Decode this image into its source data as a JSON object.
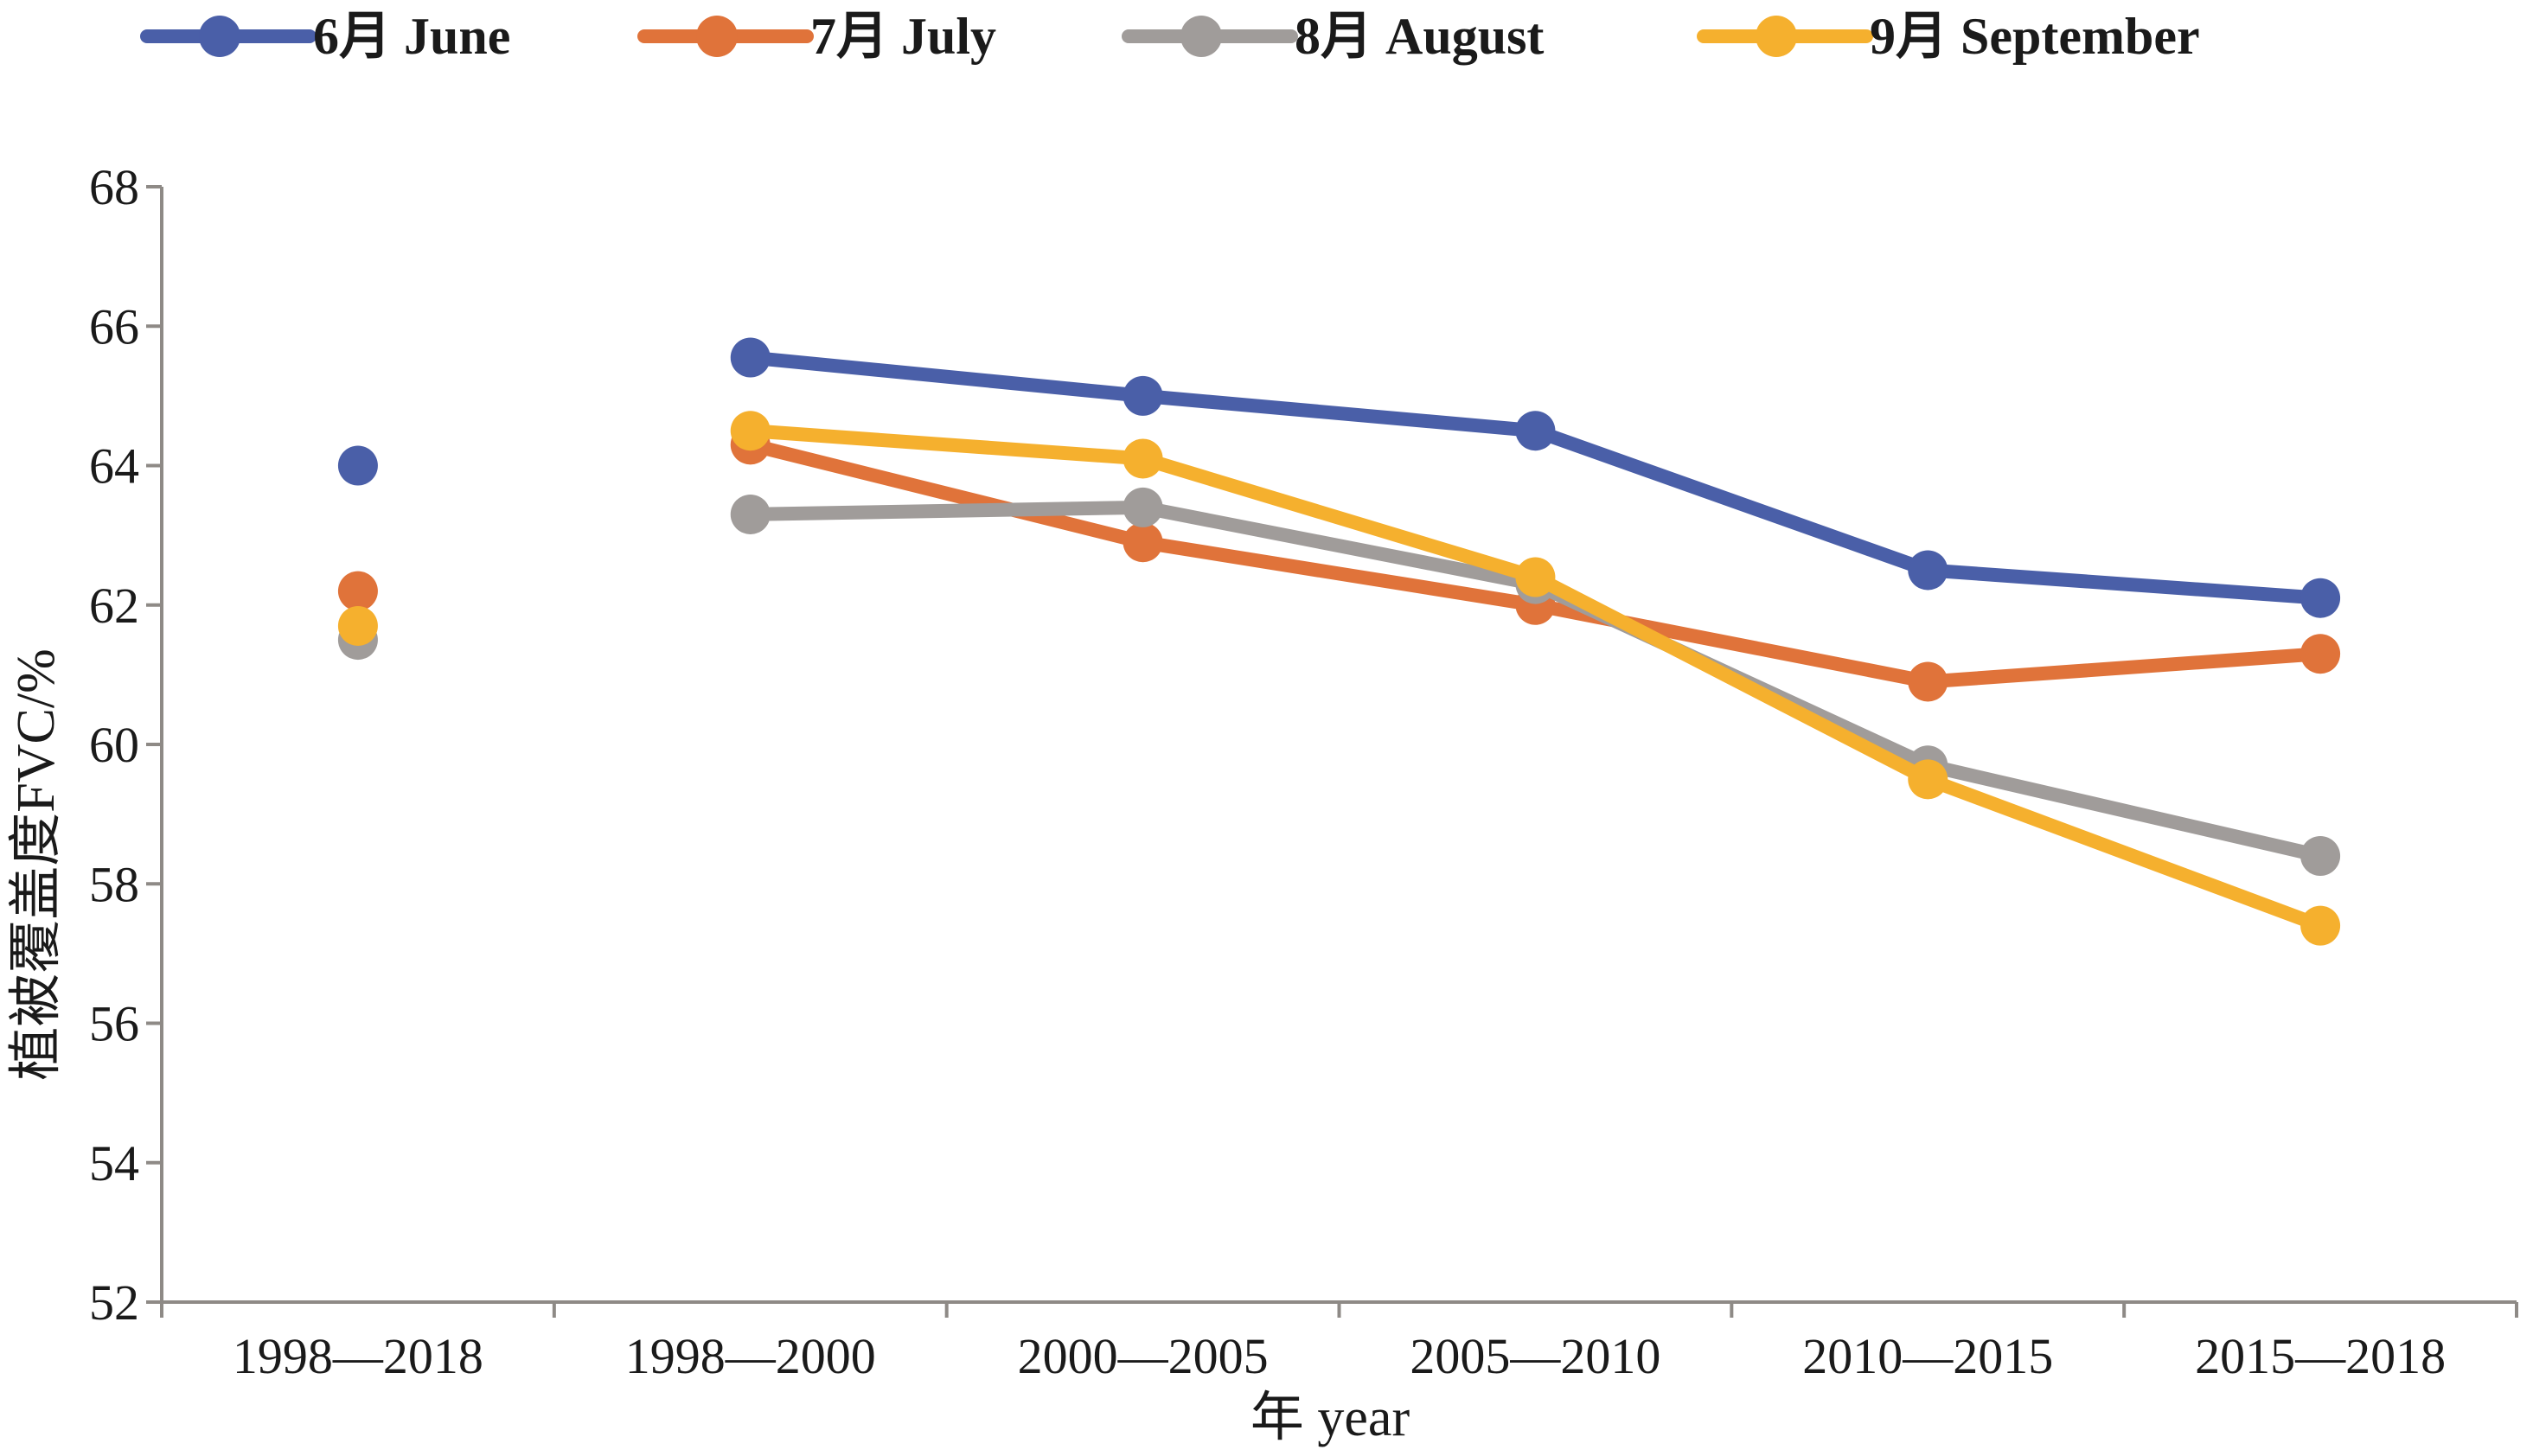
{
  "chart_data": {
    "type": "line",
    "title": "",
    "xlabel": "年 year",
    "ylabel": "植被覆盖度FVC/%",
    "ylim": [
      52,
      68
    ],
    "yticks": [
      52,
      54,
      56,
      58,
      60,
      62,
      64,
      66,
      68
    ],
    "categories": [
      "1998—2018",
      "1998—2000",
      "2000—2005",
      "2005—2010",
      "2010—2015",
      "2015—2018"
    ],
    "legend_position": "top",
    "grid": false,
    "series": [
      {
        "name": "6月 June",
        "color": "#4A5FA8",
        "values": [
          64.0,
          65.55,
          65.0,
          64.5,
          62.5,
          62.1
        ]
      },
      {
        "name": "7月 July",
        "color": "#E0733A",
        "values": [
          62.2,
          64.3,
          62.9,
          62.0,
          60.9,
          61.3
        ]
      },
      {
        "name": "8月 August",
        "color": "#A09C9A",
        "values": [
          61.5,
          63.3,
          63.4,
          62.3,
          59.7,
          58.4
        ]
      },
      {
        "name": "9月 September",
        "color": "#F5B02E",
        "values": [
          61.7,
          64.5,
          64.1,
          62.4,
          59.5,
          57.4
        ]
      }
    ],
    "connected_from_index": 1
  }
}
